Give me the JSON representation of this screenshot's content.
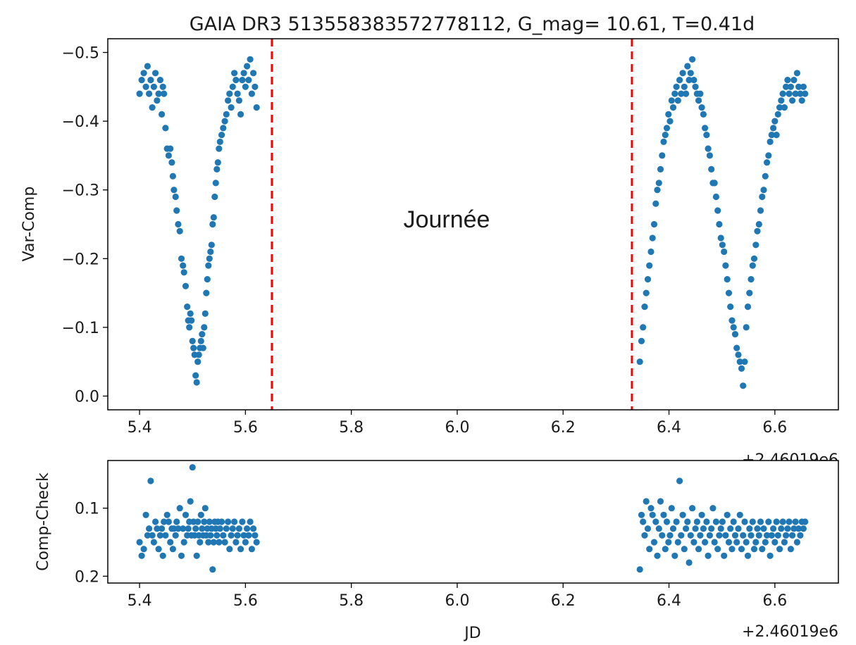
{
  "chart_data": [
    {
      "type": "scatter",
      "title": "GAIA DR3 513558383572778112, G_mag= 10.61, T=0.41d",
      "xlabel": "",
      "ylabel": "Var-Comp",
      "x_offset_label": "+2.46019e6",
      "xlim": [
        5.34,
        6.72
      ],
      "ylim": [
        0.02,
        -0.52
      ],
      "y_inverted": true,
      "xticks": [
        "5.4",
        "5.6",
        "5.8",
        "6.0",
        "6.2",
        "6.4",
        "6.6"
      ],
      "yticks": [
        "0.0",
        "−0.1",
        "−0.2",
        "−0.3",
        "−0.4",
        "−0.5"
      ],
      "marker_color": "#1f77b4",
      "vlines": [
        {
          "x": 5.65,
          "color": "#ff0000",
          "style": "dashed"
        },
        {
          "x": 6.33,
          "color": "#ff0000",
          "style": "dashed"
        }
      ],
      "annotation": {
        "text": "Journée",
        "x": 5.99,
        "y": -0.26
      },
      "series": [
        {
          "x": [
            5.4,
            5.404,
            5.408,
            5.412,
            5.415,
            5.418,
            5.421,
            5.424,
            5.427,
            5.43,
            5.433,
            5.436,
            5.439,
            5.442,
            5.444,
            5.446,
            5.449,
            5.452,
            5.455,
            5.458,
            5.461,
            5.463,
            5.465,
            5.468,
            5.47,
            5.473,
            5.476,
            5.479,
            5.482,
            5.484,
            5.487,
            5.49,
            5.492,
            5.494,
            5.496,
            5.498,
            5.5,
            5.502,
            5.504,
            5.506,
            5.508,
            5.51,
            5.512,
            5.514,
            5.516,
            5.518,
            5.52,
            5.522,
            5.524,
            5.526,
            5.528,
            5.53,
            5.532,
            5.534,
            5.536,
            5.538,
            5.54,
            5.542,
            5.544,
            5.546,
            5.548,
            5.55,
            5.552,
            5.555,
            5.558,
            5.561,
            5.564,
            5.567,
            5.57,
            5.573,
            5.576,
            5.579,
            5.582,
            5.585,
            5.588,
            5.591,
            5.594,
            5.597,
            5.6,
            5.603,
            5.606,
            5.609,
            5.612,
            5.615,
            5.618,
            5.621
          ],
          "y": [
            -0.44,
            -0.46,
            -0.47,
            -0.45,
            -0.48,
            -0.44,
            -0.46,
            -0.42,
            -0.45,
            -0.47,
            -0.43,
            -0.44,
            -0.46,
            -0.41,
            -0.45,
            -0.44,
            -0.39,
            -0.36,
            -0.35,
            -0.36,
            -0.34,
            -0.32,
            -0.3,
            -0.29,
            -0.27,
            -0.25,
            -0.24,
            -0.2,
            -0.19,
            -0.18,
            -0.16,
            -0.13,
            -0.11,
            -0.1,
            -0.12,
            -0.11,
            -0.08,
            -0.07,
            -0.06,
            -0.03,
            -0.02,
            -0.05,
            -0.06,
            -0.07,
            -0.08,
            -0.09,
            -0.07,
            -0.1,
            -0.12,
            -0.15,
            -0.17,
            -0.19,
            -0.2,
            -0.21,
            -0.22,
            -0.25,
            -0.26,
            -0.29,
            -0.31,
            -0.33,
            -0.34,
            -0.36,
            -0.37,
            -0.38,
            -0.39,
            -0.4,
            -0.41,
            -0.43,
            -0.44,
            -0.42,
            -0.45,
            -0.47,
            -0.46,
            -0.44,
            -0.43,
            -0.41,
            -0.46,
            -0.47,
            -0.45,
            -0.48,
            -0.46,
            -0.49,
            -0.44,
            -0.47,
            -0.45,
            -0.42
          ]
        },
        {
          "x": [
            6.345,
            6.348,
            6.351,
            6.354,
            6.357,
            6.36,
            6.363,
            6.366,
            6.369,
            6.372,
            6.375,
            6.378,
            6.381,
            6.384,
            6.387,
            6.39,
            6.393,
            6.396,
            6.399,
            6.402,
            6.405,
            6.408,
            6.411,
            6.414,
            6.417,
            6.42,
            6.423,
            6.426,
            6.429,
            6.432,
            6.435,
            6.438,
            6.441,
            6.444,
            6.447,
            6.45,
            6.453,
            6.456,
            6.459,
            6.462,
            6.465,
            6.468,
            6.471,
            6.474,
            6.477,
            6.48,
            6.483,
            6.486,
            6.489,
            6.492,
            6.495,
            6.498,
            6.501,
            6.504,
            6.507,
            6.51,
            6.513,
            6.516,
            6.519,
            6.522,
            6.525,
            6.528,
            6.531,
            6.534,
            6.537,
            6.54,
            6.543,
            6.546,
            6.549,
            6.552,
            6.555,
            6.558,
            6.561,
            6.564,
            6.567,
            6.57,
            6.573,
            6.576,
            6.579,
            6.582,
            6.585,
            6.588,
            6.591,
            6.594,
            6.597,
            6.6,
            6.603,
            6.606,
            6.609,
            6.612,
            6.615,
            6.618,
            6.621,
            6.624,
            6.627,
            6.63,
            6.633,
            6.636,
            6.639,
            6.642,
            6.645,
            6.648,
            6.651,
            6.654,
            6.657
          ],
          "y": [
            -0.05,
            -0.08,
            -0.1,
            -0.13,
            -0.15,
            -0.17,
            -0.19,
            -0.21,
            -0.23,
            -0.25,
            -0.28,
            -0.3,
            -0.31,
            -0.33,
            -0.35,
            -0.37,
            -0.38,
            -0.39,
            -0.41,
            -0.4,
            -0.43,
            -0.42,
            -0.44,
            -0.45,
            -0.43,
            -0.46,
            -0.44,
            -0.47,
            -0.45,
            -0.44,
            -0.48,
            -0.46,
            -0.47,
            -0.49,
            -0.46,
            -0.45,
            -0.44,
            -0.43,
            -0.44,
            -0.42,
            -0.41,
            -0.39,
            -0.38,
            -0.36,
            -0.35,
            -0.33,
            -0.31,
            -0.31,
            -0.29,
            -0.27,
            -0.25,
            -0.23,
            -0.22,
            -0.21,
            -0.19,
            -0.17,
            -0.15,
            -0.13,
            -0.11,
            -0.1,
            -0.09,
            -0.07,
            -0.06,
            -0.05,
            -0.04,
            -0.015,
            -0.05,
            -0.1,
            -0.13,
            -0.15,
            -0.17,
            -0.19,
            -0.2,
            -0.22,
            -0.24,
            -0.25,
            -0.27,
            -0.29,
            -0.3,
            -0.32,
            -0.34,
            -0.35,
            -0.37,
            -0.38,
            -0.39,
            -0.4,
            -0.38,
            -0.41,
            -0.42,
            -0.43,
            -0.44,
            -0.42,
            -0.45,
            -0.46,
            -0.44,
            -0.45,
            -0.43,
            -0.46,
            -0.44,
            -0.47,
            -0.45,
            -0.44,
            -0.43,
            -0.45,
            -0.44
          ]
        }
      ]
    },
    {
      "type": "scatter",
      "title": "",
      "xlabel": "JD",
      "ylabel": "Comp-Check",
      "x_offset_label": "+2.46019e6",
      "xlim": [
        5.34,
        6.72
      ],
      "ylim": [
        0.21,
        0.03
      ],
      "y_inverted": true,
      "xticks": [
        "5.4",
        "5.6",
        "5.8",
        "6.0",
        "6.2",
        "6.4",
        "6.6"
      ],
      "yticks": [
        "0.1",
        "0.2"
      ],
      "marker_color": "#1f77b4",
      "series": [
        {
          "x": [
            5.4,
            5.404,
            5.408,
            5.412,
            5.415,
            5.418,
            5.421,
            5.424,
            5.427,
            5.43,
            5.433,
            5.436,
            5.439,
            5.442,
            5.444,
            5.446,
            5.449,
            5.452,
            5.455,
            5.458,
            5.461,
            5.463,
            5.465,
            5.468,
            5.47,
            5.473,
            5.476,
            5.479,
            5.482,
            5.484,
            5.487,
            5.49,
            5.492,
            5.494,
            5.496,
            5.498,
            5.5,
            5.502,
            5.504,
            5.506,
            5.508,
            5.51,
            5.512,
            5.514,
            5.516,
            5.518,
            5.52,
            5.522,
            5.524,
            5.526,
            5.528,
            5.53,
            5.532,
            5.534,
            5.536,
            5.538,
            5.54,
            5.542,
            5.544,
            5.546,
            5.548,
            5.55,
            5.552,
            5.555,
            5.558,
            5.561,
            5.564,
            5.567,
            5.57,
            5.573,
            5.576,
            5.579,
            5.582,
            5.585,
            5.588,
            5.591,
            5.594,
            5.597,
            5.6,
            5.603,
            5.606,
            5.609,
            5.612,
            5.615,
            5.618,
            5.621
          ],
          "y": [
            0.15,
            0.17,
            0.16,
            0.11,
            0.14,
            0.13,
            0.06,
            0.14,
            0.15,
            0.12,
            0.13,
            0.16,
            0.14,
            0.13,
            0.17,
            0.12,
            0.14,
            0.11,
            0.12,
            0.15,
            0.13,
            0.16,
            0.13,
            0.14,
            0.12,
            0.13,
            0.1,
            0.17,
            0.13,
            0.15,
            0.11,
            0.14,
            0.13,
            0.12,
            0.09,
            0.14,
            0.04,
            0.12,
            0.14,
            0.13,
            0.17,
            0.12,
            0.14,
            0.15,
            0.11,
            0.13,
            0.14,
            0.12,
            0.1,
            0.14,
            0.13,
            0.15,
            0.12,
            0.14,
            0.13,
            0.19,
            0.15,
            0.12,
            0.13,
            0.14,
            0.12,
            0.15,
            0.13,
            0.12,
            0.14,
            0.15,
            0.13,
            0.12,
            0.16,
            0.14,
            0.13,
            0.12,
            0.15,
            0.14,
            0.13,
            0.16,
            0.12,
            0.14,
            0.15,
            0.13,
            0.14,
            0.12,
            0.16,
            0.13,
            0.14,
            0.15
          ]
        },
        {
          "x": [
            6.345,
            6.348,
            6.351,
            6.354,
            6.357,
            6.36,
            6.363,
            6.366,
            6.369,
            6.372,
            6.375,
            6.378,
            6.381,
            6.384,
            6.387,
            6.39,
            6.393,
            6.396,
            6.399,
            6.402,
            6.405,
            6.408,
            6.411,
            6.414,
            6.417,
            6.42,
            6.423,
            6.426,
            6.429,
            6.432,
            6.435,
            6.438,
            6.441,
            6.444,
            6.447,
            6.45,
            6.453,
            6.456,
            6.459,
            6.462,
            6.465,
            6.468,
            6.471,
            6.474,
            6.477,
            6.48,
            6.483,
            6.486,
            6.489,
            6.492,
            6.495,
            6.498,
            6.501,
            6.504,
            6.507,
            6.51,
            6.513,
            6.516,
            6.519,
            6.522,
            6.525,
            6.528,
            6.531,
            6.534,
            6.537,
            6.54,
            6.543,
            6.546,
            6.549,
            6.552,
            6.555,
            6.558,
            6.561,
            6.564,
            6.567,
            6.57,
            6.573,
            6.576,
            6.579,
            6.582,
            6.585,
            6.588,
            6.591,
            6.594,
            6.597,
            6.6,
            6.603,
            6.606,
            6.609,
            6.612,
            6.615,
            6.618,
            6.621,
            6.624,
            6.627,
            6.63,
            6.633,
            6.636,
            6.639,
            6.642,
            6.645,
            6.648,
            6.651,
            6.654,
            6.657
          ],
          "y": [
            0.19,
            0.11,
            0.12,
            0.14,
            0.09,
            0.13,
            0.16,
            0.1,
            0.11,
            0.15,
            0.12,
            0.17,
            0.13,
            0.09,
            0.14,
            0.11,
            0.16,
            0.12,
            0.15,
            0.14,
            0.1,
            0.13,
            0.17,
            0.12,
            0.15,
            0.06,
            0.14,
            0.11,
            0.16,
            0.13,
            0.12,
            0.18,
            0.14,
            0.1,
            0.15,
            0.13,
            0.12,
            0.16,
            0.14,
            0.11,
            0.13,
            0.15,
            0.12,
            0.17,
            0.14,
            0.13,
            0.1,
            0.15,
            0.12,
            0.16,
            0.14,
            0.13,
            0.12,
            0.17,
            0.14,
            0.11,
            0.15,
            0.13,
            0.16,
            0.12,
            0.14,
            0.15,
            0.13,
            0.11,
            0.16,
            0.14,
            0.12,
            0.15,
            0.17,
            0.13,
            0.14,
            0.12,
            0.16,
            0.15,
            0.13,
            0.14,
            0.12,
            0.16,
            0.13,
            0.15,
            0.14,
            0.12,
            0.17,
            0.14,
            0.13,
            0.15,
            0.12,
            0.14,
            0.16,
            0.13,
            0.12,
            0.15,
            0.14,
            0.13,
            0.12,
            0.16,
            0.14,
            0.13,
            0.12,
            0.15,
            0.13,
            0.14,
            0.12,
            0.13,
            0.12
          ]
        }
      ]
    }
  ]
}
